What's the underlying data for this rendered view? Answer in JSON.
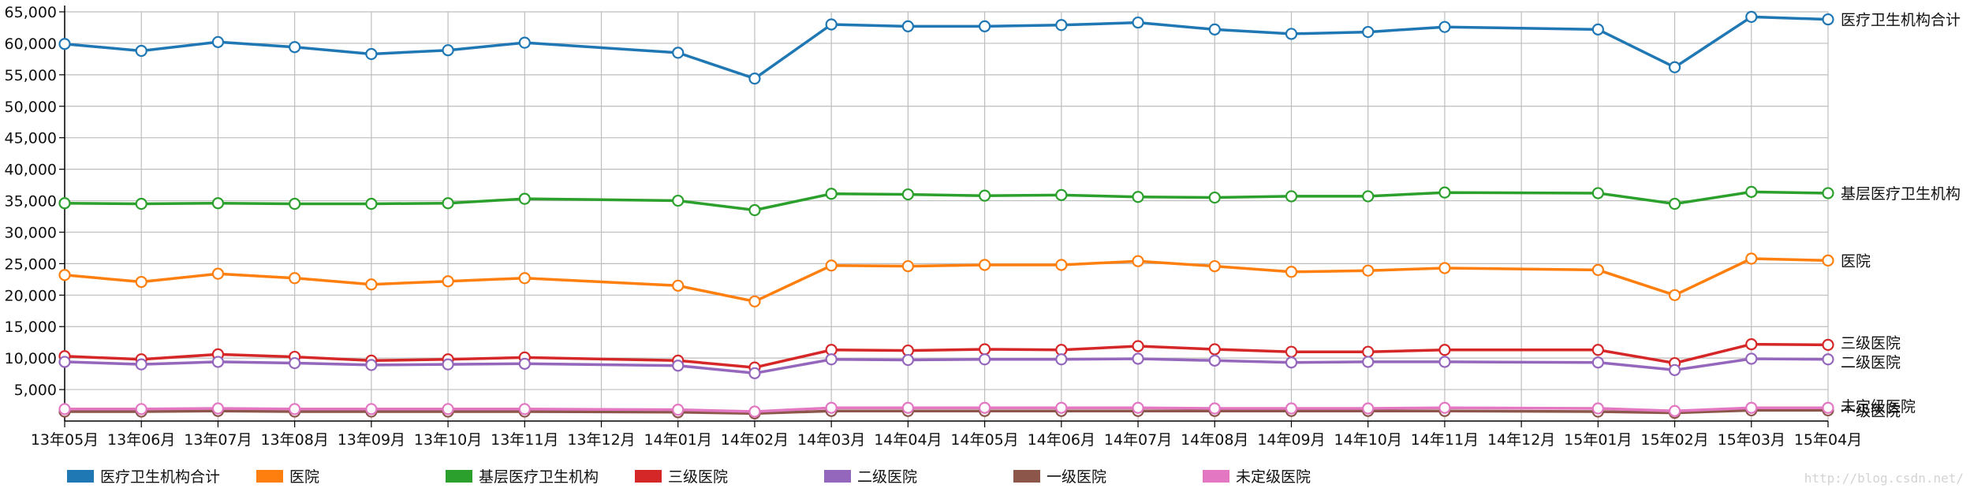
{
  "watermark": "http://blog.csdn.net/",
  "chart_data": {
    "type": "line",
    "categories": [
      "13年05月",
      "13年06月",
      "13年07月",
      "13年08月",
      "13年09月",
      "13年10月",
      "13年11月",
      "13年12月",
      "14年01月",
      "14年02月",
      "14年03月",
      "14年04月",
      "14年05月",
      "14年06月",
      "14年07月",
      "14年08月",
      "14年09月",
      "14年10月",
      "14年11月",
      "14年12月",
      "15年01月",
      "15年02月",
      "15年03月",
      "15年04月"
    ],
    "ylim": [
      0,
      65000
    ],
    "yticks": [
      5000,
      10000,
      15000,
      20000,
      25000,
      30000,
      35000,
      40000,
      45000,
      50000,
      55000,
      60000,
      65000
    ],
    "ytick_labels": [
      "5,000",
      "10,000",
      "15,000",
      "20,000",
      "25,000",
      "30,000",
      "35,000",
      "40,000",
      "45,000",
      "50,000",
      "55,000",
      "60,000",
      "65,000"
    ],
    "grid": true,
    "legend_position": "bottom",
    "series": [
      {
        "name": "医疗卫生机构合计",
        "color": "#1f77b4",
        "values": [
          59900,
          58800,
          60200,
          59400,
          58300,
          58900,
          60100,
          null,
          58500,
          54400,
          63000,
          62700,
          62700,
          62900,
          63300,
          62200,
          61500,
          61800,
          62600,
          null,
          62200,
          56200,
          64200,
          63800
        ]
      },
      {
        "name": "医院",
        "color": "#ff7f0e",
        "values": [
          23200,
          22100,
          23400,
          22700,
          21700,
          22200,
          22700,
          null,
          21500,
          19000,
          24700,
          24600,
          24800,
          24800,
          25400,
          24600,
          23700,
          23900,
          24300,
          null,
          24000,
          20000,
          25800,
          25500
        ]
      },
      {
        "name": "基层医疗卫生机构",
        "color": "#2ca02c",
        "values": [
          34600,
          34500,
          34600,
          34500,
          34500,
          34600,
          35300,
          null,
          35000,
          33500,
          36100,
          36000,
          35800,
          35900,
          35600,
          35500,
          35700,
          35700,
          36300,
          null,
          36200,
          34500,
          36400,
          36200
        ]
      },
      {
        "name": "三级医院",
        "color": "#d62728",
        "values": [
          10300,
          9800,
          10600,
          10200,
          9600,
          9800,
          10100,
          null,
          9600,
          8500,
          11300,
          11200,
          11400,
          11300,
          11900,
          11400,
          11000,
          11000,
          11300,
          null,
          11300,
          9200,
          12200,
          12100
        ]
      },
      {
        "name": "二级医院",
        "color": "#9467bd",
        "values": [
          9400,
          9000,
          9400,
          9200,
          8900,
          9000,
          9100,
          null,
          8800,
          7600,
          9800,
          9700,
          9800,
          9800,
          9900,
          9600,
          9300,
          9400,
          9400,
          null,
          9300,
          8100,
          9900,
          9800
        ]
      },
      {
        "name": "一级医院",
        "color": "#8c564b",
        "values": [
          1500,
          1500,
          1600,
          1500,
          1500,
          1500,
          1500,
          null,
          1400,
          1200,
          1600,
          1600,
          1600,
          1600,
          1600,
          1600,
          1600,
          1600,
          1600,
          null,
          1500,
          1300,
          1700,
          1700
        ]
      },
      {
        "name": "未定级医院",
        "color": "#e377c2",
        "values": [
          1900,
          1900,
          2000,
          1900,
          1900,
          1900,
          1900,
          null,
          1800,
          1500,
          2100,
          2100,
          2100,
          2100,
          2100,
          2000,
          2000,
          2000,
          2100,
          null,
          2000,
          1600,
          2100,
          2100
        ]
      }
    ]
  }
}
